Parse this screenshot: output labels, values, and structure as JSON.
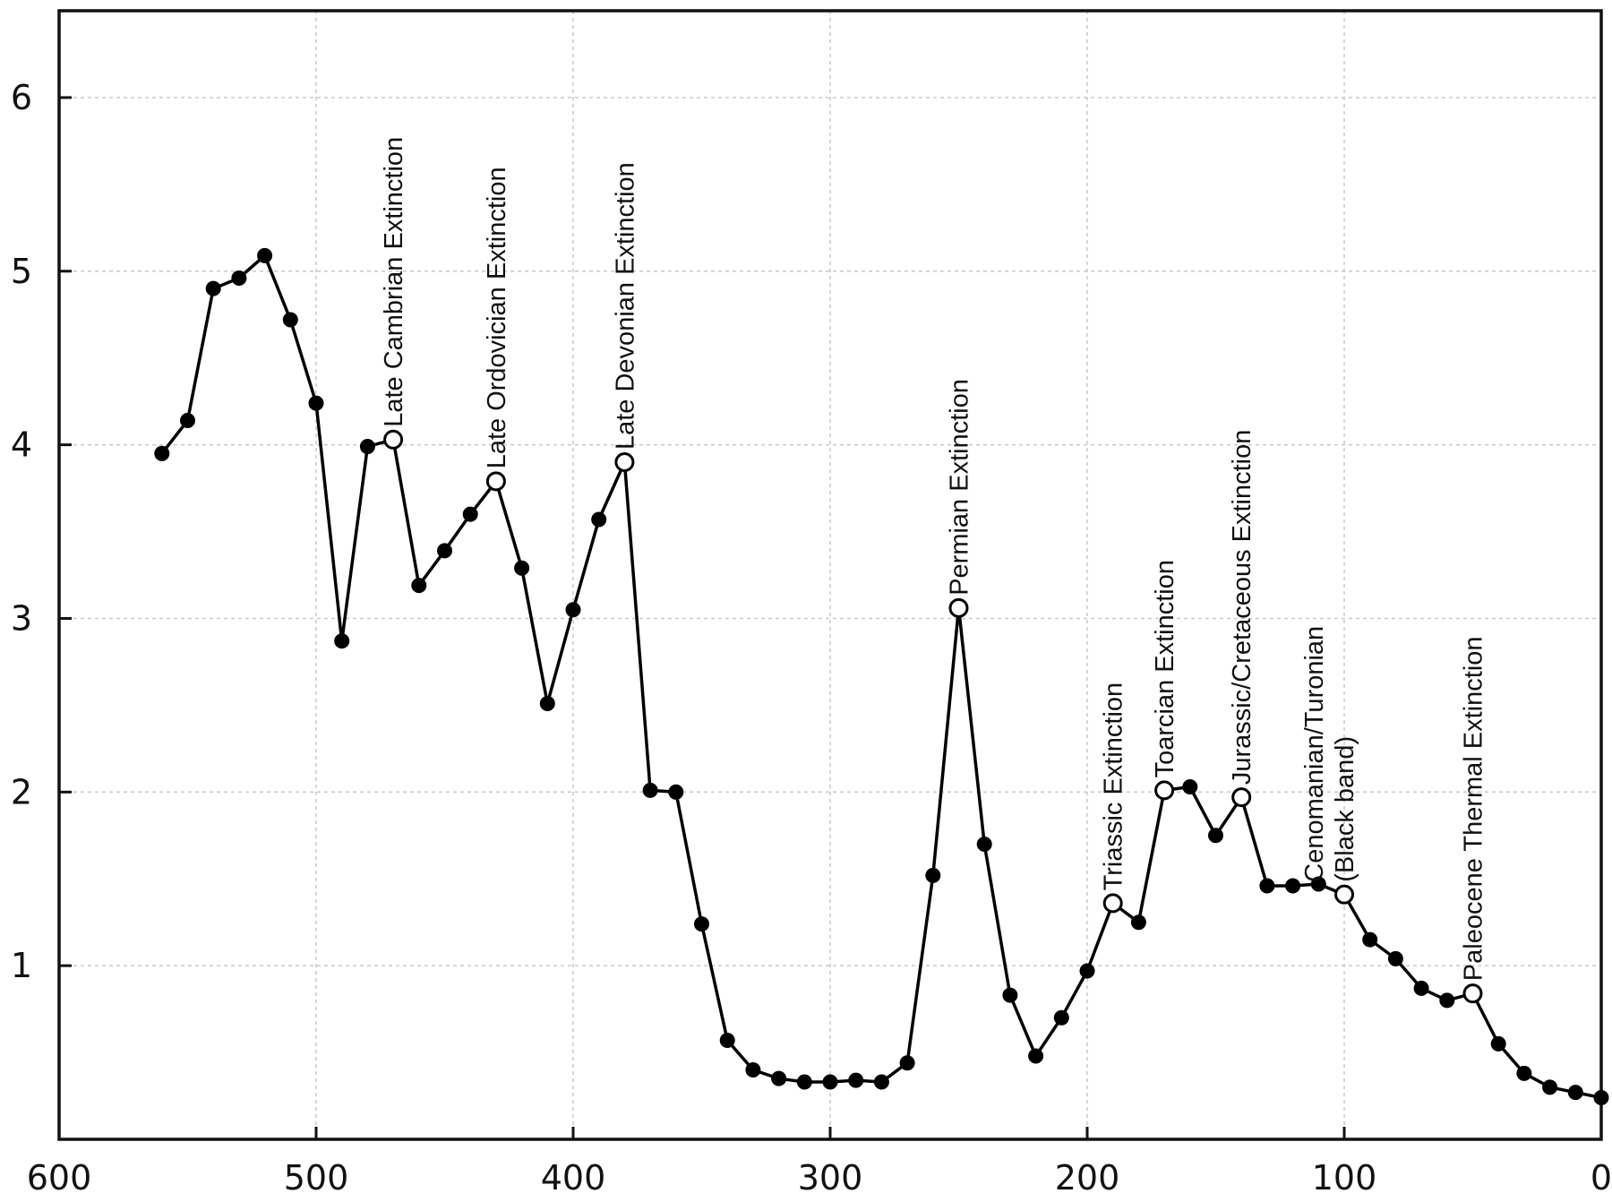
{
  "chart_data": {
    "type": "line",
    "title": "",
    "xlabel": "",
    "ylabel": "",
    "xlim": [
      600,
      0
    ],
    "ylim": [
      0,
      6.5
    ],
    "x_reversed": true,
    "grid": true,
    "x_ticks": [
      600,
      500,
      400,
      300,
      200,
      100,
      0
    ],
    "y_ticks": [
      1,
      2,
      3,
      4,
      5,
      6
    ],
    "series": [
      {
        "color": "#000000",
        "points": [
          {
            "x": 560,
            "y": 3.95
          },
          {
            "x": 550,
            "y": 4.14
          },
          {
            "x": 540,
            "y": 4.9
          },
          {
            "x": 530,
            "y": 4.96
          },
          {
            "x": 520,
            "y": 5.09
          },
          {
            "x": 510,
            "y": 4.72
          },
          {
            "x": 500,
            "y": 4.24
          },
          {
            "x": 490,
            "y": 2.87
          },
          {
            "x": 480,
            "y": 3.99
          },
          {
            "x": 470,
            "y": 4.03,
            "marker": "open"
          },
          {
            "x": 460,
            "y": 3.19
          },
          {
            "x": 450,
            "y": 3.39
          },
          {
            "x": 440,
            "y": 3.6
          },
          {
            "x": 430,
            "y": 3.79,
            "marker": "open"
          },
          {
            "x": 420,
            "y": 3.29
          },
          {
            "x": 410,
            "y": 2.51
          },
          {
            "x": 400,
            "y": 3.05
          },
          {
            "x": 390,
            "y": 3.57
          },
          {
            "x": 380,
            "y": 3.9,
            "marker": "open"
          },
          {
            "x": 370,
            "y": 2.01
          },
          {
            "x": 360,
            "y": 2.0
          },
          {
            "x": 350,
            "y": 1.24
          },
          {
            "x": 340,
            "y": 0.57
          },
          {
            "x": 330,
            "y": 0.4
          },
          {
            "x": 320,
            "y": 0.35
          },
          {
            "x": 310,
            "y": 0.33
          },
          {
            "x": 300,
            "y": 0.33
          },
          {
            "x": 290,
            "y": 0.34
          },
          {
            "x": 280,
            "y": 0.33
          },
          {
            "x": 270,
            "y": 0.44
          },
          {
            "x": 260,
            "y": 1.52
          },
          {
            "x": 250,
            "y": 3.06,
            "marker": "open"
          },
          {
            "x": 240,
            "y": 1.7
          },
          {
            "x": 230,
            "y": 0.83
          },
          {
            "x": 220,
            "y": 0.48
          },
          {
            "x": 210,
            "y": 0.7
          },
          {
            "x": 200,
            "y": 0.97
          },
          {
            "x": 190,
            "y": 1.36,
            "marker": "open"
          },
          {
            "x": 180,
            "y": 1.25
          },
          {
            "x": 170,
            "y": 2.01,
            "marker": "open"
          },
          {
            "x": 160,
            "y": 2.03
          },
          {
            "x": 150,
            "y": 1.75
          },
          {
            "x": 140,
            "y": 1.97,
            "marker": "open"
          },
          {
            "x": 130,
            "y": 1.46
          },
          {
            "x": 120,
            "y": 1.46
          },
          {
            "x": 110,
            "y": 1.47
          },
          {
            "x": 100,
            "y": 1.41,
            "marker": "open"
          },
          {
            "x": 90,
            "y": 1.15
          },
          {
            "x": 80,
            "y": 1.04
          },
          {
            "x": 70,
            "y": 0.87
          },
          {
            "x": 60,
            "y": 0.8
          },
          {
            "x": 50,
            "y": 0.84,
            "marker": "open"
          },
          {
            "x": 40,
            "y": 0.55
          },
          {
            "x": 30,
            "y": 0.38
          },
          {
            "x": 20,
            "y": 0.3
          },
          {
            "x": 10,
            "y": 0.27
          },
          {
            "x": 0,
            "y": 0.24
          }
        ]
      }
    ],
    "annotations": [
      {
        "x": 470,
        "y": 4.03,
        "lines": [
          "Late Cambrian Extinction"
        ]
      },
      {
        "x": 430,
        "y": 3.79,
        "lines": [
          "Late Ordovician Extinction"
        ]
      },
      {
        "x": 380,
        "y": 3.9,
        "lines": [
          "Late Devonian Extinction"
        ]
      },
      {
        "x": 250,
        "y": 3.06,
        "lines": [
          "Permian Extinction"
        ]
      },
      {
        "x": 190,
        "y": 1.36,
        "lines": [
          "Triassic Extinction"
        ]
      },
      {
        "x": 170,
        "y": 2.01,
        "lines": [
          "Toarcian Extinction"
        ]
      },
      {
        "x": 140,
        "y": 1.97,
        "lines": [
          "Jurassic/Cretaceous Extinction"
        ]
      },
      {
        "x": 100,
        "y": 1.41,
        "lines": [
          "Cenomanian/Turonian",
          "(Black band)"
        ]
      },
      {
        "x": 50,
        "y": 0.84,
        "lines": [
          "Paleocene Thermal Extinction"
        ]
      }
    ]
  }
}
